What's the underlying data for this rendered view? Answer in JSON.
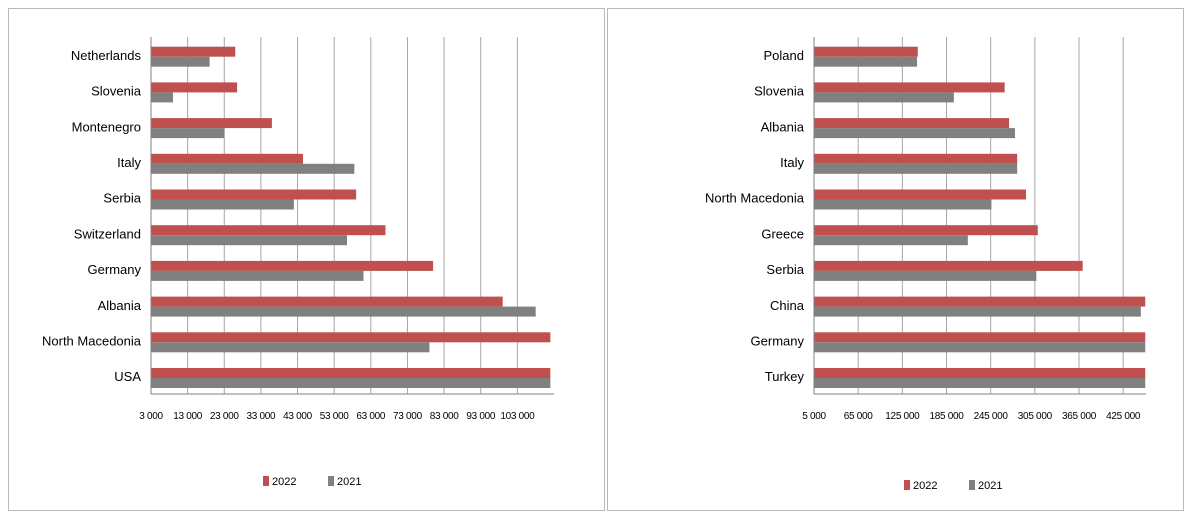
{
  "colors": {
    "s2022": "#c0504d",
    "s2021": "#808080",
    "grid": "#a6a6a6",
    "axis": "#808080"
  },
  "chart_data": [
    {
      "type": "bar",
      "orientation": "horizontal",
      "title": "",
      "categories": [
        "USA",
        "North Macedonia",
        "Albania",
        "Germany",
        "Switzerland",
        "Serbia",
        "Italy",
        "Montenegro",
        "Slovenia",
        "Netherlands"
      ],
      "series": [
        {
          "name": "2022",
          "values": [
            112000,
            112000,
            99000,
            80000,
            67000,
            59000,
            44500,
            36000,
            26500,
            26000
          ]
        },
        {
          "name": "2021",
          "values": [
            112000,
            79000,
            108000,
            61000,
            56500,
            42000,
            58500,
            23000,
            9000,
            19000
          ]
        }
      ],
      "xlim": [
        3000,
        113000
      ],
      "xticks": [
        3000,
        13000,
        23000,
        33000,
        43000,
        53000,
        63000,
        73000,
        83000,
        93000,
        103000
      ],
      "xtick_labels": [
        "3 000",
        "13 000",
        "23 000",
        "33 000",
        "43 000",
        "53 000",
        "63 000",
        "73 000",
        "83 000",
        "93 000",
        "103 000"
      ],
      "grid": true,
      "legend": "bottom"
    },
    {
      "type": "bar",
      "orientation": "horizontal",
      "title": "",
      "categories": [
        "Turkey",
        "Germany",
        "China",
        "Serbia",
        "Greece",
        "North Macedonia",
        "Italy",
        "Albania",
        "Slovenia",
        "Poland"
      ],
      "series": [
        {
          "name": "2022",
          "values": [
            455000,
            455000,
            455000,
            370000,
            309000,
            293000,
            281000,
            270000,
            264000,
            146000
          ]
        },
        {
          "name": "2021",
          "values": [
            455000,
            455000,
            449000,
            307000,
            214000,
            246000,
            281000,
            278000,
            195000,
            145000
          ]
        }
      ],
      "xlim": [
        5000,
        456000
      ],
      "xticks": [
        5000,
        65000,
        125000,
        185000,
        245000,
        305000,
        365000,
        425000
      ],
      "xtick_labels": [
        "5 000",
        "65 000",
        "125 000",
        "185 000",
        "245 000",
        "305 000",
        "365 000",
        "425 000"
      ],
      "grid": true,
      "legend": "bottom"
    }
  ]
}
